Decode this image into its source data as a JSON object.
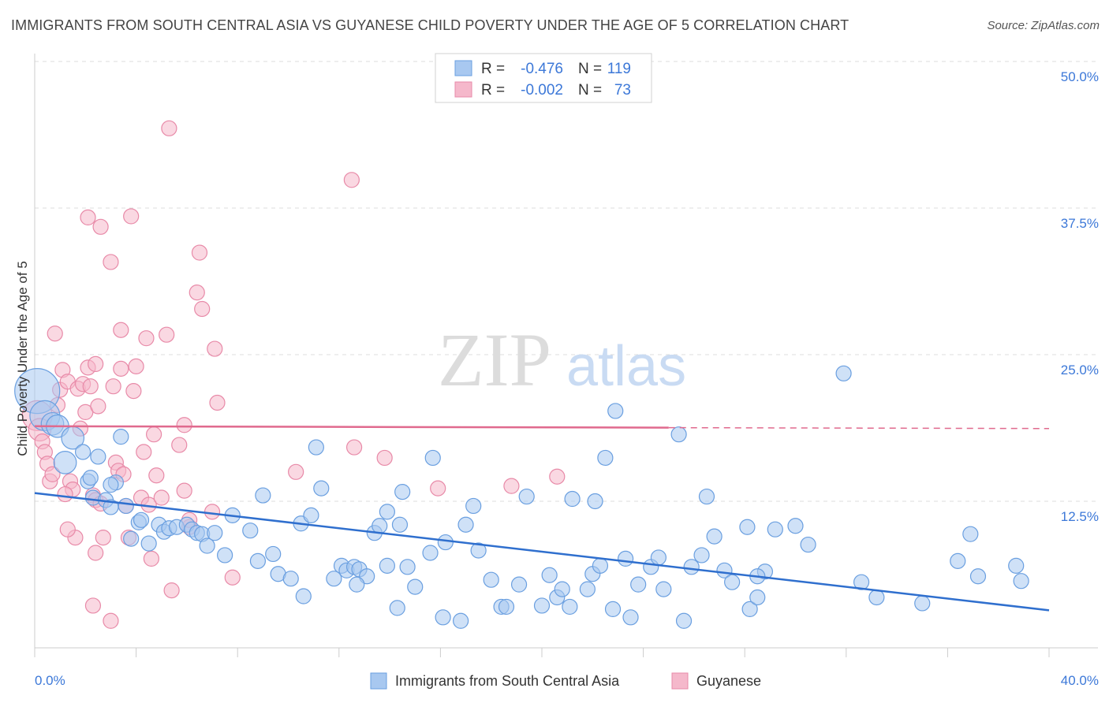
{
  "title": "IMMIGRANTS FROM SOUTH CENTRAL ASIA VS GUYANESE CHILD POVERTY UNDER THE AGE OF 5 CORRELATION CHART",
  "source": "Source: ZipAtlas.com",
  "watermark": {
    "zip": "ZIP",
    "atlas": "atlas"
  },
  "colors": {
    "blue_fill": "#a8c8f0",
    "blue_stroke": "#6a9fe0",
    "blue_line": "#2f6fce",
    "pink_fill": "#f5b8cb",
    "pink_stroke": "#e88aa8",
    "pink_line": "#e06a8e",
    "axis_text": "#3c78d8",
    "grid": "#dddddd"
  },
  "legend": {
    "rows": [
      {
        "r_label": "R =",
        "r_value": "-0.476",
        "n_label": "N =",
        "n_value": "119"
      },
      {
        "r_label": "R =",
        "r_value": "-0.002",
        "n_label": "N =",
        "n_value": "73"
      }
    ]
  },
  "bottom_legend": [
    "Immigrants from South Central Asia",
    "Guyanese"
  ],
  "chart_data": {
    "type": "scatter",
    "title": "IMMIGRANTS FROM SOUTH CENTRAL ASIA VS GUYANESE CHILD POVERTY UNDER THE AGE OF 5 CORRELATION CHART",
    "xlabel": "",
    "ylabel": "Child Poverty Under the Age of 5",
    "xlim": [
      0,
      40
    ],
    "ylim": [
      0,
      50
    ],
    "x_tick_labels": [
      "0.0%",
      "40.0%"
    ],
    "y_ticks": [
      12.5,
      25.0,
      37.5,
      50.0
    ],
    "y_tick_labels": [
      "12.5%",
      "25.0%",
      "37.5%",
      "50.0%"
    ],
    "grid": true,
    "legend_position": "top-center",
    "series": [
      {
        "name": "Immigrants from South Central Asia",
        "R": -0.476,
        "N": 119,
        "trend": {
          "x": [
            0,
            40
          ],
          "y": [
            13.2,
            3.2
          ],
          "dashed_from": null
        },
        "points": [
          [
            0.1,
            21.9,
            3
          ],
          [
            0.4,
            19.8,
            2
          ],
          [
            0.7,
            19.1,
            1.5
          ],
          [
            0.9,
            18.9,
            1.5
          ],
          [
            1.5,
            17.9,
            1.5
          ],
          [
            1.9,
            16.7,
            1
          ],
          [
            3.4,
            18.0,
            1
          ],
          [
            1.2,
            15.8,
            1.5
          ],
          [
            2.5,
            16.3,
            1
          ],
          [
            3.2,
            14.1,
            1
          ],
          [
            2.1,
            14.2,
            1
          ],
          [
            2.2,
            14.5,
            1
          ],
          [
            3.0,
            13.9,
            1
          ],
          [
            2.3,
            12.8,
            1
          ],
          [
            2.8,
            12.6,
            1
          ],
          [
            3.0,
            12.0,
            1
          ],
          [
            3.6,
            12.1,
            1
          ],
          [
            3.8,
            9.3,
            1
          ],
          [
            4.1,
            10.7,
            1
          ],
          [
            4.2,
            10.9,
            1
          ],
          [
            4.5,
            8.9,
            1
          ],
          [
            4.9,
            10.5,
            1
          ],
          [
            5.1,
            9.9,
            1
          ],
          [
            5.3,
            10.2,
            1
          ],
          [
            5.6,
            10.3,
            1
          ],
          [
            6.0,
            10.5,
            1
          ],
          [
            6.2,
            10.1,
            1
          ],
          [
            6.4,
            9.8,
            1
          ],
          [
            6.6,
            9.7,
            1
          ],
          [
            7.1,
            9.8,
            1
          ],
          [
            7.8,
            11.3,
            1
          ],
          [
            8.5,
            10.0,
            1
          ],
          [
            6.8,
            8.7,
            1
          ],
          [
            7.5,
            7.9,
            1
          ],
          [
            8.8,
            7.4,
            1
          ],
          [
            9.4,
            8.0,
            1
          ],
          [
            9.6,
            6.3,
            1
          ],
          [
            10.1,
            5.9,
            1
          ],
          [
            10.5,
            10.6,
            1
          ],
          [
            10.9,
            11.3,
            1
          ],
          [
            11.1,
            17.1,
            1
          ],
          [
            11.3,
            13.6,
            1
          ],
          [
            10.6,
            4.4,
            1
          ],
          [
            12.1,
            7.0,
            1
          ],
          [
            12.3,
            6.6,
            1
          ],
          [
            12.6,
            6.9,
            1
          ],
          [
            12.8,
            6.7,
            1
          ],
          [
            13.1,
            6.1,
            1
          ],
          [
            11.8,
            5.9,
            1
          ],
          [
            12.7,
            5.4,
            1
          ],
          [
            13.4,
            9.8,
            1
          ],
          [
            13.6,
            10.4,
            1
          ],
          [
            13.9,
            11.6,
            1
          ],
          [
            14.4,
            10.5,
            1
          ],
          [
            14.5,
            13.3,
            1
          ],
          [
            13.9,
            7.0,
            1
          ],
          [
            14.7,
            6.9,
            1
          ],
          [
            15.0,
            5.2,
            1
          ],
          [
            14.3,
            3.4,
            1
          ],
          [
            15.7,
            16.2,
            1
          ],
          [
            15.6,
            8.1,
            1
          ],
          [
            16.2,
            9.0,
            1
          ],
          [
            16.1,
            2.6,
            1
          ],
          [
            16.8,
            2.3,
            1
          ],
          [
            17.0,
            10.5,
            1
          ],
          [
            17.3,
            12.1,
            1
          ],
          [
            17.5,
            8.3,
            1
          ],
          [
            18.0,
            5.8,
            1
          ],
          [
            18.4,
            3.5,
            1
          ],
          [
            18.6,
            3.5,
            1
          ],
          [
            19.1,
            5.4,
            1
          ],
          [
            19.4,
            12.9,
            1
          ],
          [
            20.0,
            3.6,
            1
          ],
          [
            20.3,
            6.2,
            1
          ],
          [
            20.6,
            4.3,
            1
          ],
          [
            20.8,
            5.0,
            1
          ],
          [
            21.1,
            3.5,
            1
          ],
          [
            21.8,
            5.0,
            1
          ],
          [
            21.2,
            12.7,
            1
          ],
          [
            22.0,
            6.3,
            1
          ],
          [
            22.3,
            7.0,
            1
          ],
          [
            22.5,
            16.2,
            1
          ],
          [
            22.1,
            12.5,
            1
          ],
          [
            22.8,
            3.3,
            1
          ],
          [
            23.3,
            7.6,
            1
          ],
          [
            23.5,
            2.6,
            1
          ],
          [
            23.8,
            5.4,
            1
          ],
          [
            22.9,
            20.2,
            1
          ],
          [
            24.3,
            6.9,
            1
          ],
          [
            24.6,
            7.7,
            1
          ],
          [
            25.4,
            18.2,
            1
          ],
          [
            25.6,
            2.3,
            1
          ],
          [
            25.9,
            6.9,
            1
          ],
          [
            26.3,
            7.9,
            1
          ],
          [
            26.5,
            12.9,
            1
          ],
          [
            27.2,
            6.6,
            1
          ],
          [
            27.5,
            5.6,
            1
          ],
          [
            28.1,
            10.3,
            1
          ],
          [
            28.2,
            3.3,
            1
          ],
          [
            28.5,
            4.3,
            1
          ],
          [
            28.8,
            6.5,
            1
          ],
          [
            30.0,
            10.4,
            1
          ],
          [
            30.5,
            8.8,
            1
          ],
          [
            28.5,
            6.1,
            1
          ],
          [
            29.2,
            10.1,
            1
          ],
          [
            31.9,
            23.4,
            1
          ],
          [
            32.6,
            5.6,
            1
          ],
          [
            33.2,
            4.3,
            1
          ],
          [
            35.0,
            3.8,
            1
          ],
          [
            36.4,
            7.4,
            1
          ],
          [
            36.9,
            9.7,
            1
          ],
          [
            37.2,
            6.1,
            1
          ],
          [
            38.7,
            7.0,
            1
          ],
          [
            38.9,
            5.7,
            1
          ],
          [
            26.8,
            9.5,
            1
          ],
          [
            24.8,
            5.0,
            1
          ],
          [
            9.0,
            13.0,
            1
          ]
        ]
      },
      {
        "name": "Guyanese",
        "R": -0.002,
        "N": 73,
        "trend": {
          "x": [
            0,
            40
          ],
          "y": [
            18.9,
            18.7
          ],
          "dashed_from": 25
        },
        "points": [
          [
            0.1,
            19.8,
            2
          ],
          [
            0.2,
            18.6,
            1.5
          ],
          [
            0.3,
            17.6,
            1
          ],
          [
            0.4,
            16.7,
            1
          ],
          [
            0.5,
            15.7,
            1
          ],
          [
            0.6,
            14.2,
            1
          ],
          [
            0.7,
            14.8,
            1
          ],
          [
            0.8,
            26.8,
            1
          ],
          [
            0.9,
            20.7,
            1
          ],
          [
            1.0,
            22.0,
            1
          ],
          [
            1.1,
            23.7,
            1
          ],
          [
            1.3,
            22.7,
            1
          ],
          [
            1.4,
            14.2,
            1
          ],
          [
            1.5,
            13.5,
            1
          ],
          [
            1.2,
            13.1,
            1
          ],
          [
            1.7,
            22.1,
            1
          ],
          [
            1.8,
            18.7,
            1
          ],
          [
            1.6,
            9.4,
            1
          ],
          [
            1.3,
            10.1,
            1
          ],
          [
            1.9,
            22.5,
            1
          ],
          [
            2.0,
            20.1,
            1
          ],
          [
            2.1,
            23.9,
            1
          ],
          [
            2.2,
            22.3,
            1
          ],
          [
            2.4,
            24.2,
            1
          ],
          [
            2.5,
            20.6,
            1
          ],
          [
            2.1,
            36.7,
            1
          ],
          [
            2.6,
            35.9,
            1
          ],
          [
            2.3,
            13.0,
            1
          ],
          [
            2.4,
            12.6,
            1
          ],
          [
            2.6,
            12.3,
            1
          ],
          [
            2.7,
            9.4,
            1
          ],
          [
            2.4,
            8.1,
            1
          ],
          [
            2.3,
            3.6,
            1
          ],
          [
            3.0,
            32.9,
            1
          ],
          [
            3.1,
            22.3,
            1
          ],
          [
            3.2,
            15.8,
            1
          ],
          [
            3.3,
            15.1,
            1
          ],
          [
            3.4,
            27.1,
            1
          ],
          [
            3.4,
            23.8,
            1
          ],
          [
            3.5,
            14.8,
            1
          ],
          [
            3.6,
            12.1,
            1
          ],
          [
            3.7,
            9.4,
            1
          ],
          [
            3.0,
            2.3,
            1
          ],
          [
            3.8,
            36.8,
            1
          ],
          [
            3.9,
            21.9,
            1
          ],
          [
            4.0,
            24.0,
            1
          ],
          [
            4.2,
            12.8,
            1
          ],
          [
            4.3,
            16.7,
            1
          ],
          [
            4.4,
            26.4,
            1
          ],
          [
            4.5,
            12.2,
            1
          ],
          [
            4.6,
            7.6,
            1
          ],
          [
            4.7,
            18.2,
            1
          ],
          [
            4.8,
            14.7,
            1
          ],
          [
            5.0,
            12.8,
            1
          ],
          [
            5.2,
            26.7,
            1
          ],
          [
            5.4,
            4.9,
            1
          ],
          [
            5.3,
            44.3,
            1
          ],
          [
            5.7,
            17.3,
            1
          ],
          [
            5.9,
            13.4,
            1
          ],
          [
            6.1,
            10.3,
            1
          ],
          [
            6.1,
            10.9,
            1
          ],
          [
            5.9,
            19.0,
            1
          ],
          [
            6.4,
            30.3,
            1
          ],
          [
            6.6,
            28.9,
            1
          ],
          [
            6.5,
            33.7,
            1
          ],
          [
            7.0,
            11.6,
            1
          ],
          [
            7.2,
            20.9,
            1
          ],
          [
            7.1,
            25.5,
            1
          ],
          [
            7.8,
            6.0,
            1
          ],
          [
            10.3,
            15.0,
            1
          ],
          [
            12.5,
            39.9,
            1
          ],
          [
            12.6,
            17.1,
            1
          ],
          [
            13.8,
            16.2,
            1
          ],
          [
            15.9,
            13.6,
            1
          ],
          [
            18.8,
            13.8,
            1
          ],
          [
            20.6,
            14.6,
            1
          ]
        ]
      }
    ]
  }
}
